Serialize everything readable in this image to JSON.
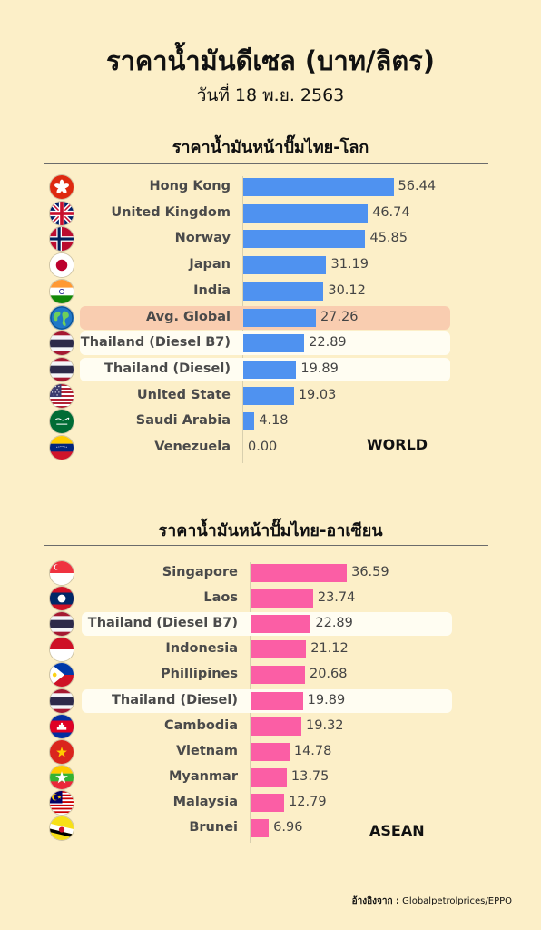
{
  "title": "ราคาน้ำมันดีเซล (บาท/ลิตร)",
  "date": "วันที่ 18 พ.ย. 2563",
  "source": {
    "label": "อ้างอิงจาก :",
    "value": "Globalpetrolprices/EPPO"
  },
  "chart_data": [
    {
      "type": "bar",
      "orientation": "horizontal",
      "title": "ราคาน้ำมันหน้าปั๊มไทย-โลก",
      "tag": "WORLD",
      "color": "#4f92f0",
      "highlight_colors": {
        "strong": "#f9cdb0",
        "light": "#fffdf2"
      },
      "xlim": [
        0,
        60
      ],
      "categories": [
        "Hong Kong",
        "United Kingdom",
        "Norway",
        "Japan",
        "India",
        "Avg. Global",
        "Thailand (Diesel B7)",
        "Thailand (Diesel)",
        "United State",
        "Saudi Arabia",
        "Venezuela"
      ],
      "values": [
        56.44,
        46.74,
        45.85,
        31.19,
        30.12,
        27.26,
        22.89,
        19.89,
        19.03,
        4.18,
        0.0
      ],
      "labels": [
        "56.44",
        "46.74",
        "45.85",
        "31.19",
        "30.12",
        "27.26",
        "22.89",
        "19.89",
        "19.03",
        "4.18",
        "0.00"
      ],
      "flags": [
        "hk-flag-icon",
        "uk-flag-icon",
        "no-flag-icon",
        "jp-flag-icon",
        "in-flag-icon",
        "globe-icon",
        "th-flag-icon",
        "th-flag-icon",
        "us-flag-icon",
        "sa-flag-icon",
        "ve-flag-icon"
      ],
      "highlight": [
        "none",
        "none",
        "none",
        "none",
        "none",
        "strong",
        "light",
        "light",
        "none",
        "none",
        "none"
      ]
    },
    {
      "type": "bar",
      "orientation": "horizontal",
      "title": "ราคาน้ำมันหน้าปั๊มไทย-อาเซียน",
      "tag": "ASEAN",
      "color": "#fb5ea5",
      "highlight_colors": {
        "light": "#fffdf2"
      },
      "xlim": [
        0,
        40
      ],
      "categories": [
        "Singapore",
        "Laos",
        "Thailand (Diesel B7)",
        "Indonesia",
        "Phillipines",
        "Thailand (Diesel)",
        "Cambodia",
        "Vietnam",
        "Myanmar",
        "Malaysia",
        "Brunei"
      ],
      "values": [
        36.59,
        23.74,
        22.89,
        21.12,
        20.68,
        19.89,
        19.32,
        14.78,
        13.75,
        12.79,
        6.96
      ],
      "labels": [
        "36.59",
        "23.74",
        "22.89",
        "21.12",
        "20.68",
        "19.89",
        "19.32",
        "14.78",
        "13.75",
        "12.79",
        "6.96"
      ],
      "flags": [
        "sg-flag-icon",
        "la-flag-icon",
        "th-flag-icon",
        "id-flag-icon",
        "ph-flag-icon",
        "th-flag-icon",
        "kh-flag-icon",
        "vn-flag-icon",
        "mm-flag-icon",
        "my-flag-icon",
        "bn-flag-icon"
      ],
      "highlight": [
        "none",
        "none",
        "light",
        "none",
        "none",
        "light",
        "none",
        "none",
        "none",
        "none",
        "none"
      ]
    }
  ]
}
